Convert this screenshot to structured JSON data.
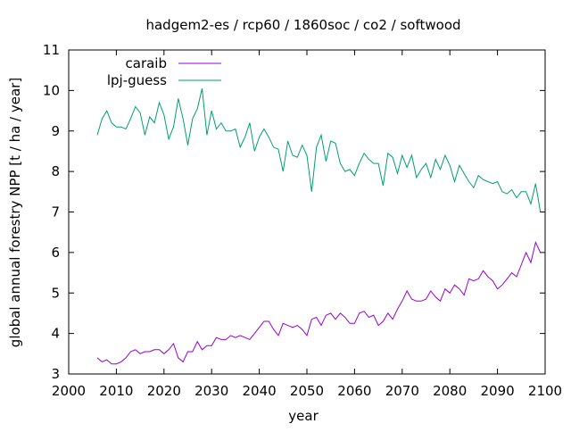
{
  "chart_data": {
    "type": "line",
    "title": "hadgem2-es / rcp60 / 1860soc / co2 / softwood",
    "xlabel": "year",
    "ylabel": "global annual forestry NPP [t / ha / year]",
    "xlim": [
      2000,
      2100
    ],
    "ylim": [
      3,
      11
    ],
    "xticks": [
      2000,
      2010,
      2020,
      2030,
      2040,
      2050,
      2060,
      2070,
      2080,
      2090,
      2100
    ],
    "yticks": [
      3,
      4,
      5,
      6,
      7,
      8,
      9,
      10,
      11
    ],
    "legend": "top-left",
    "grid": false,
    "x_start": 2006,
    "series": [
      {
        "name": "caraib",
        "color": "#9400d3",
        "values": [
          3.4,
          3.3,
          3.35,
          3.25,
          3.25,
          3.3,
          3.4,
          3.55,
          3.6,
          3.5,
          3.55,
          3.55,
          3.6,
          3.6,
          3.5,
          3.6,
          3.75,
          3.4,
          3.3,
          3.55,
          3.55,
          3.8,
          3.6,
          3.7,
          3.7,
          3.9,
          3.85,
          3.85,
          3.95,
          3.9,
          3.95,
          3.9,
          3.85,
          4.0,
          4.15,
          4.3,
          4.3,
          4.1,
          3.95,
          4.25,
          4.2,
          4.15,
          4.2,
          4.1,
          3.95,
          4.35,
          4.4,
          4.2,
          4.45,
          4.5,
          4.35,
          4.5,
          4.4,
          4.25,
          4.25,
          4.5,
          4.55,
          4.4,
          4.45,
          4.2,
          4.3,
          4.5,
          4.35,
          4.6,
          4.8,
          5.05,
          4.85,
          4.8,
          4.8,
          4.85,
          5.05,
          4.9,
          4.8,
          5.1,
          5.0,
          5.2,
          5.1,
          4.95,
          5.35,
          5.3,
          5.35,
          5.55,
          5.4,
          5.3,
          5.1,
          5.2,
          5.35,
          5.5,
          5.4,
          5.7,
          6.0,
          5.75,
          6.25,
          6.0
        ]
      },
      {
        "name": "lpj-guess",
        "color": "#009e73",
        "values": [
          8.9,
          9.3,
          9.5,
          9.2,
          9.1,
          9.1,
          9.05,
          9.3,
          9.6,
          9.45,
          8.9,
          9.35,
          9.2,
          9.7,
          9.4,
          8.8,
          9.1,
          9.8,
          9.3,
          8.65,
          9.3,
          9.55,
          10.05,
          8.9,
          9.5,
          9.05,
          9.2,
          9.0,
          9.0,
          9.05,
          8.6,
          8.85,
          9.2,
          8.5,
          8.85,
          9.05,
          8.85,
          8.6,
          8.55,
          8.0,
          8.75,
          8.4,
          8.35,
          8.65,
          8.4,
          7.5,
          8.6,
          8.9,
          8.25,
          8.75,
          8.7,
          8.2,
          8.0,
          8.05,
          7.9,
          8.2,
          8.45,
          8.3,
          8.2,
          8.2,
          7.65,
          8.45,
          8.35,
          7.95,
          8.4,
          8.1,
          8.4,
          7.85,
          8.05,
          8.2,
          7.85,
          8.3,
          8.05,
          8.4,
          8.15,
          7.75,
          8.15,
          7.95,
          7.75,
          7.6,
          7.9,
          7.8,
          7.75,
          7.7,
          7.75,
          7.5,
          7.45,
          7.55,
          7.35,
          7.5,
          7.5,
          7.2,
          7.7,
          7.0
        ]
      }
    ]
  }
}
